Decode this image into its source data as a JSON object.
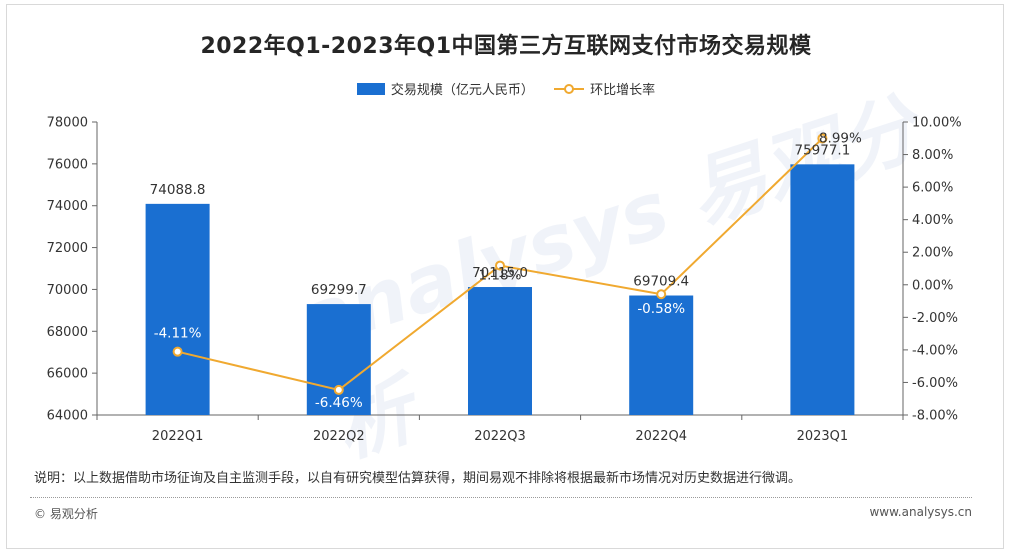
{
  "header": {
    "title": "2022年Q1-2023年Q1中国第三方互联网支付市场交易规模"
  },
  "legend": {
    "bar_label": "交易规模（亿元人民币）",
    "line_label": "环比增长率"
  },
  "watermark": {
    "text": "analysys 易观分析"
  },
  "footer": {
    "note": "说明：以上数据借助市场征询及自主监测手段，以自有研究模型估算获得，期间易观不排除将根据最新市场情况对历史数据进行微调。",
    "source": "© 易观分析",
    "website": "www.analysys.cn"
  },
  "colors": {
    "bar": "#1a6fd1",
    "line": "#f0a930",
    "axis": "#666666"
  },
  "chart_data": {
    "type": "bar",
    "title": "2022年Q1-2023年Q1中国第三方互联网支付市场交易规模",
    "categories": [
      "2022Q1",
      "2022Q2",
      "2022Q3",
      "2022Q4",
      "2023Q1"
    ],
    "series": [
      {
        "name": "交易规模（亿元人民币）",
        "type": "bar",
        "axis": "left",
        "values": [
          74088.8,
          69299.7,
          70115.0,
          69709.4,
          75977.1
        ],
        "labels": [
          "74088.8",
          "69299.7",
          "70115.0",
          "69709.4",
          "75977.1"
        ]
      },
      {
        "name": "环比增长率",
        "type": "line",
        "axis": "right",
        "values": [
          -4.11,
          -6.46,
          1.18,
          -0.58,
          8.99
        ],
        "labels": [
          "-4.11%",
          "-6.46%",
          "1.18%",
          "-0.58%",
          "8.99%"
        ]
      }
    ],
    "y_left": {
      "min": 64000,
      "max": 78000,
      "step": 2000,
      "ticks": [
        "64000",
        "66000",
        "68000",
        "70000",
        "72000",
        "74000",
        "76000",
        "78000"
      ]
    },
    "y_right": {
      "min": -8,
      "max": 10,
      "step": 2,
      "ticks": [
        "-8.00%",
        "-6.00%",
        "-4.00%",
        "-2.00%",
        "0.00%",
        "2.00%",
        "4.00%",
        "6.00%",
        "8.00%",
        "10.00%"
      ]
    },
    "grid": false,
    "legend_position": "top"
  }
}
